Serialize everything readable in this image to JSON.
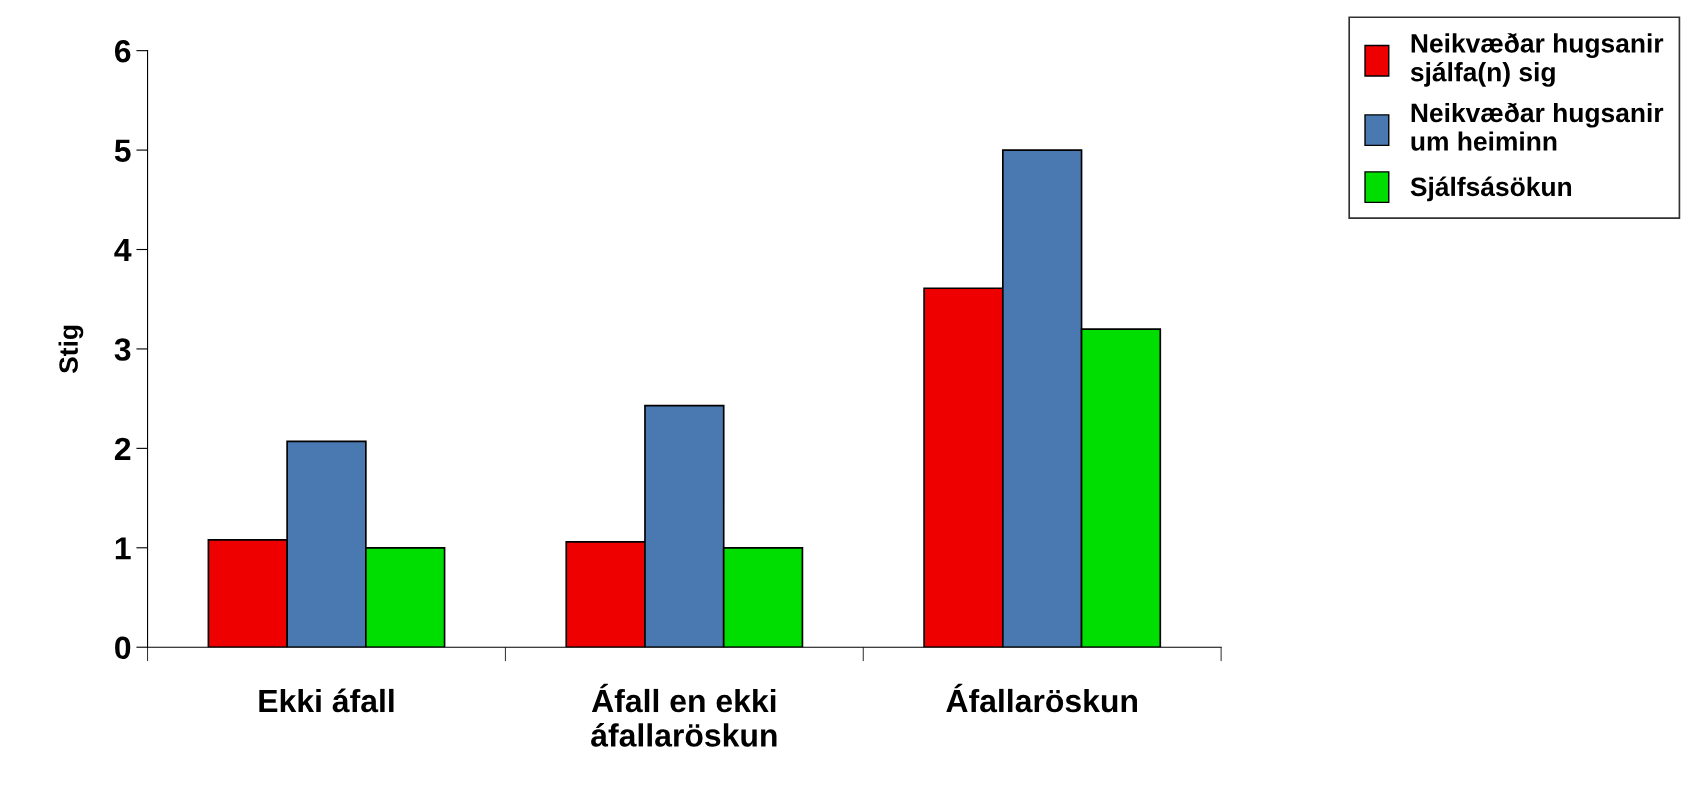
{
  "chart_data": {
    "type": "bar",
    "ylabel": "Stig",
    "categories": [
      "Ekki áfall",
      "Áfall en ekki áfallaröskun",
      "Áfallaröskun"
    ],
    "series": [
      {
        "name": "Neikvæðar hugsanir sjálfa(n) sig",
        "color": "#ee0000",
        "values": [
          1.08,
          1.06,
          3.61
        ]
      },
      {
        "name": "Neikvæðar hugsanir um heiminn",
        "color": "#4a78b0",
        "values": [
          2.07,
          2.43,
          5.0
        ]
      },
      {
        "name": "Sjálfsásökun",
        "color": "#00dd00",
        "values": [
          1.0,
          1.0,
          3.2
        ]
      }
    ],
    "ylim": [
      0,
      6
    ],
    "yticks": [
      0,
      1,
      2,
      3,
      4,
      5,
      6
    ],
    "grid": false,
    "legend": "top right"
  }
}
